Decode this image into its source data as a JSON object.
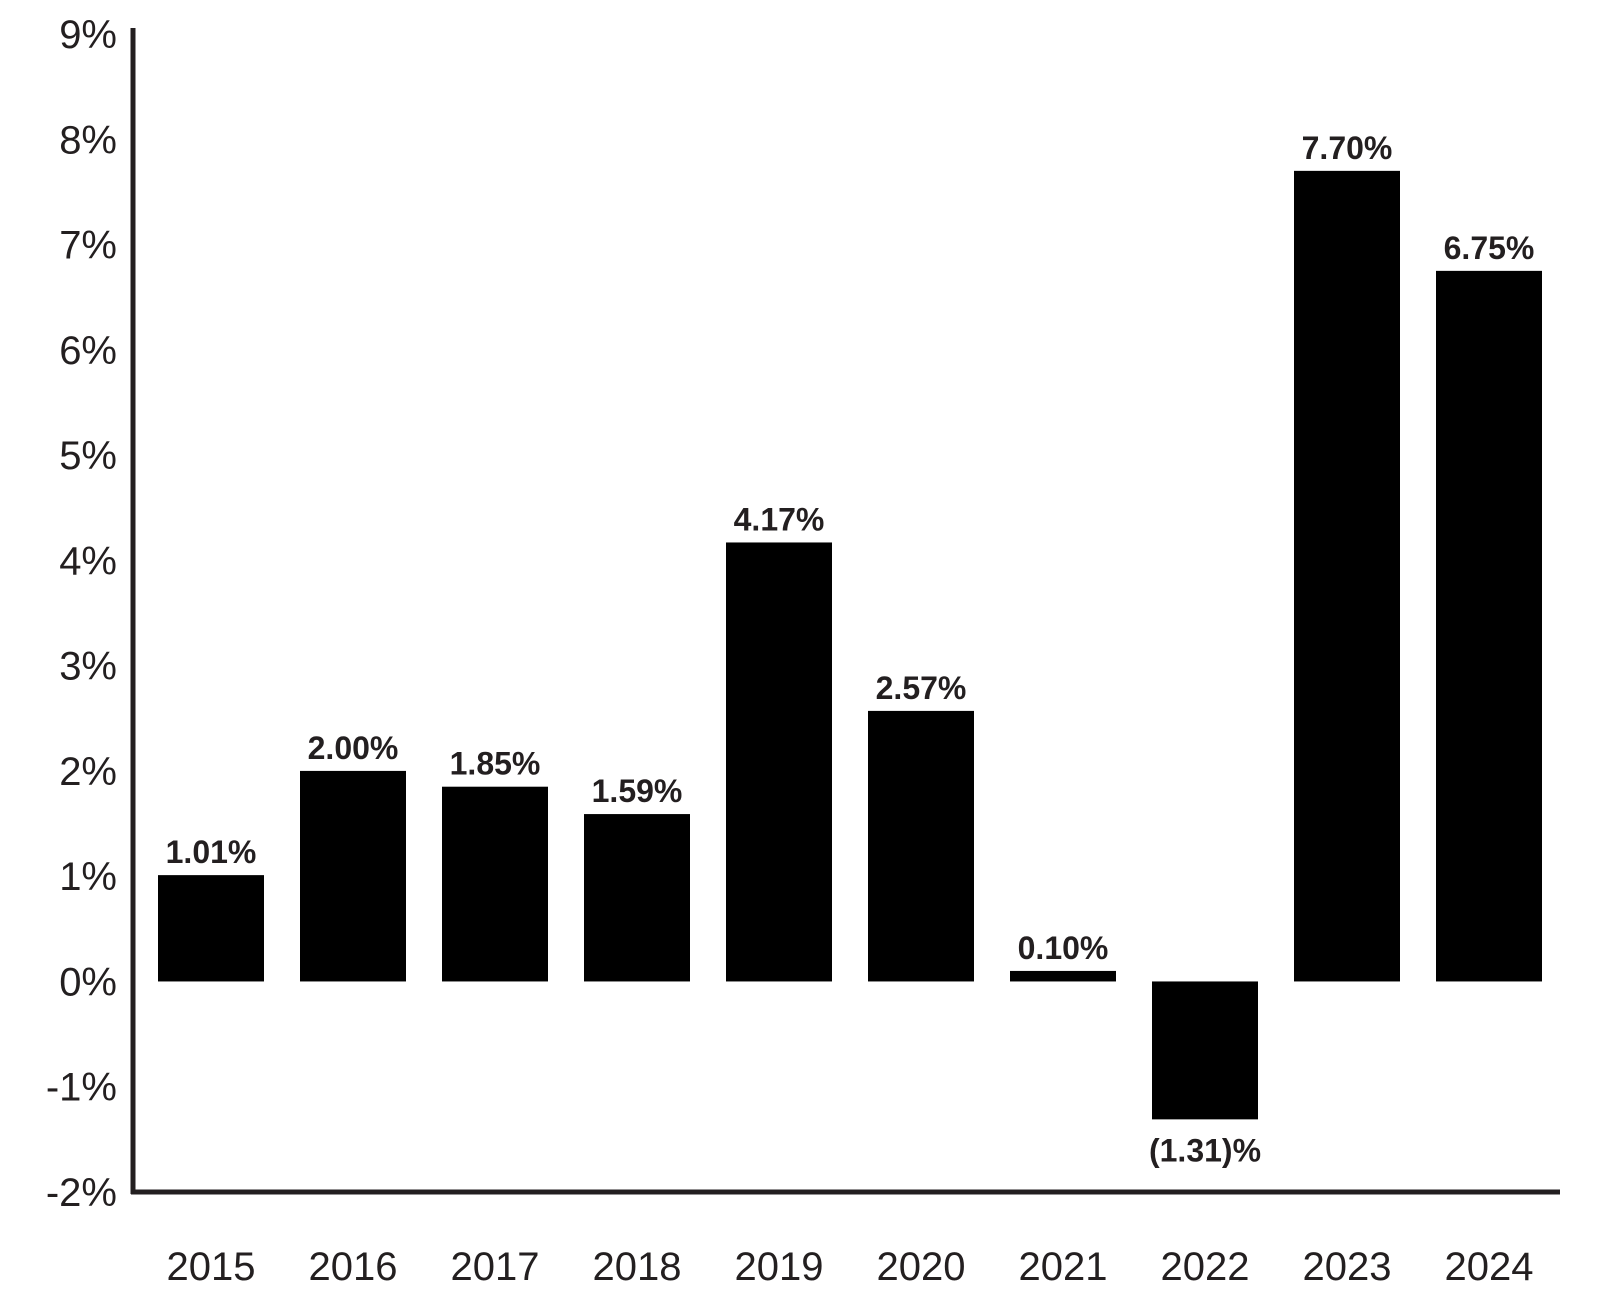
{
  "chart_data": {
    "type": "bar",
    "title": "",
    "xlabel": "",
    "ylabel": "",
    "categories": [
      "2015",
      "2016",
      "2017",
      "2018",
      "2019",
      "2020",
      "2021",
      "2022",
      "2023",
      "2024"
    ],
    "values": [
      1.01,
      2.0,
      1.85,
      1.59,
      4.17,
      2.57,
      0.1,
      -1.31,
      7.7,
      6.75
    ],
    "data_labels": [
      "1.01%",
      "2.00%",
      "1.85%",
      "1.59%",
      "4.17%",
      "2.57%",
      "0.10%",
      "(1.31)%",
      "7.70%",
      "6.75%"
    ],
    "ylim": [
      -2,
      9
    ],
    "y_ticks": [
      9,
      8,
      7,
      6,
      5,
      4,
      3,
      2,
      1,
      0,
      -1,
      -2
    ],
    "y_tick_labels": [
      "9%",
      "8%",
      "7%",
      "6%",
      "5%",
      "4%",
      "3%",
      "2%",
      "1%",
      "0%",
      "-1%",
      "-2%"
    ],
    "grid": false,
    "legend": "none",
    "bar_color": "#000000",
    "axis_color": "#231f20",
    "text_color": "#231f20"
  }
}
